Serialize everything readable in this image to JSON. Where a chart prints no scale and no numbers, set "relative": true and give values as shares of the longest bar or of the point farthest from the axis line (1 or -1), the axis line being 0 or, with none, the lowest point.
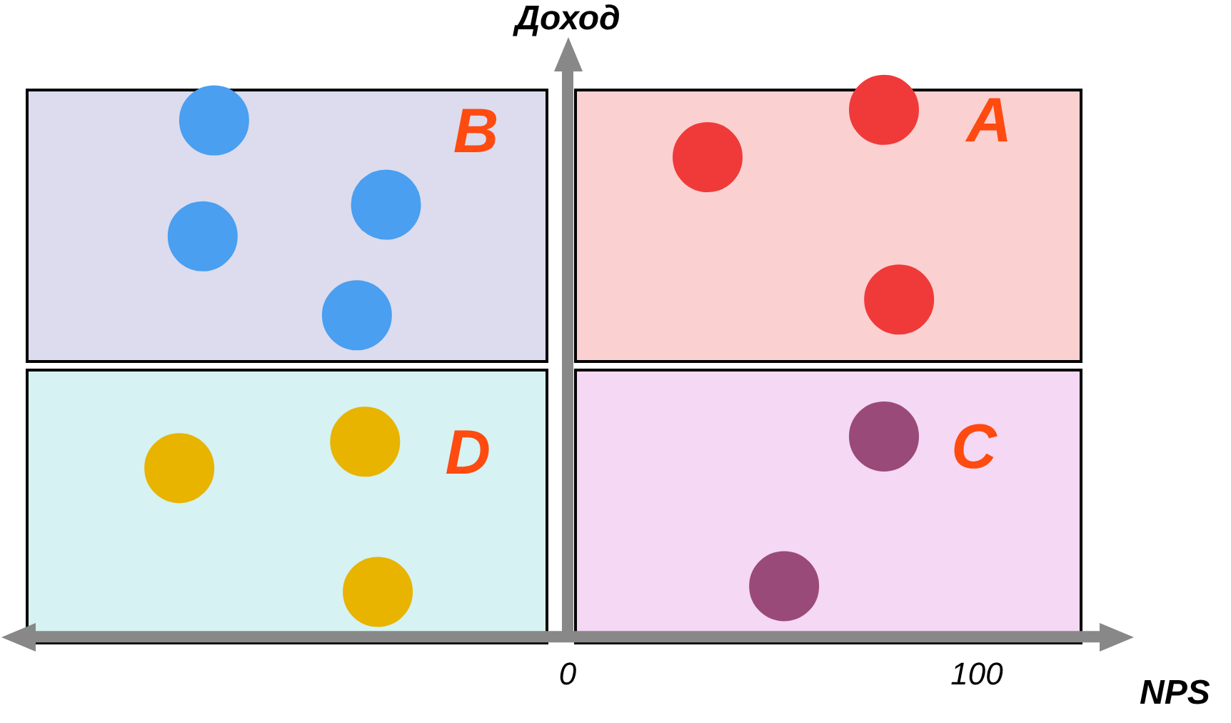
{
  "chart_data": {
    "type": "scatter",
    "relative": true,
    "xlabel": "NPS",
    "ylabel": "Доход",
    "xlim": [
      -130,
      130
    ],
    "xticks": [
      0,
      100
    ],
    "legend": false,
    "marker": "circle",
    "series": [
      {
        "name": "A",
        "color": "#f03a3a",
        "x": [
          77.3,
          34.2,
          81.0
        ],
        "values": [
          1.0,
          0.91,
          0.64
        ]
      },
      {
        "name": "B",
        "color": "#4a9ff0",
        "x": [
          -86.4,
          -44.4,
          -89.2,
          -51.5
        ],
        "values": [
          0.98,
          0.82,
          0.76,
          0.61
        ]
      },
      {
        "name": "C",
        "color": "#9a4a78",
        "x": [
          77.3,
          52.9
        ],
        "values": [
          0.38,
          0.096
        ]
      },
      {
        "name": "D",
        "color": "#e8b400",
        "x": [
          -94.9,
          -49.5,
          -46.4
        ],
        "values": [
          0.32,
          0.37,
          0.085
        ]
      }
    ]
  }
}
